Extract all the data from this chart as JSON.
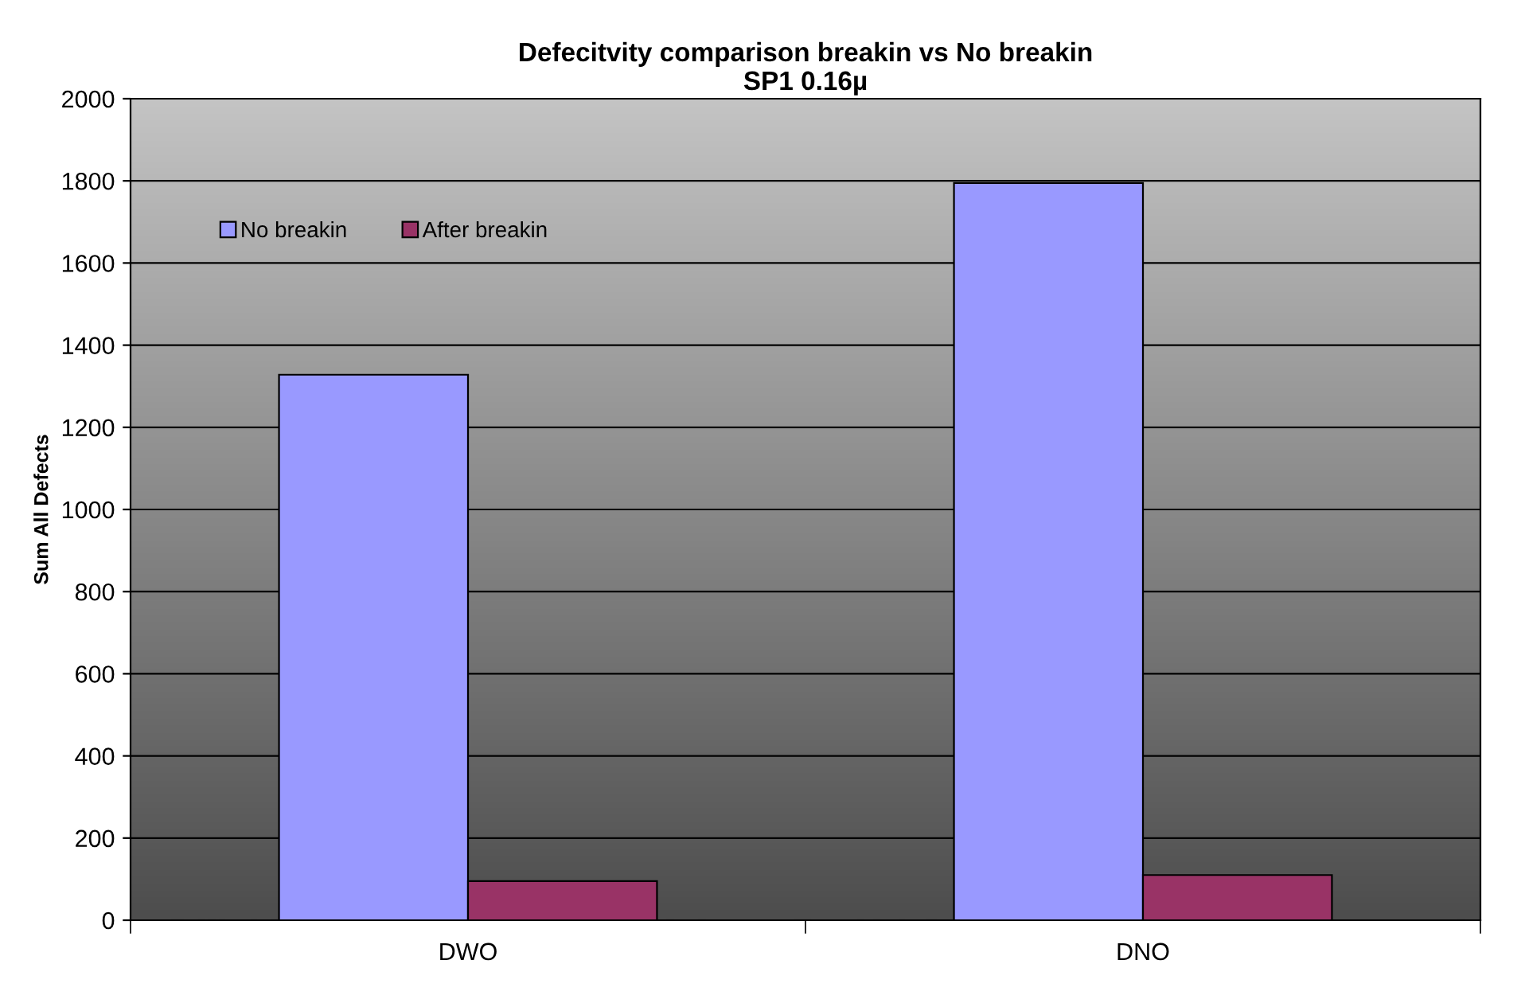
{
  "chart_data": {
    "type": "bar",
    "title": "Defecitvity comparison breakin vs No breakin\nSP1 0.16µ",
    "ylabel": "Sum All Defects",
    "categories": [
      "DWO",
      "DNO"
    ],
    "series": [
      {
        "name": "No breakin",
        "color": "#9999ff",
        "values": [
          1328,
          1795
        ]
      },
      {
        "name": "After breakin",
        "color": "#993366",
        "values": [
          95,
          110
        ]
      }
    ],
    "ylim": [
      0,
      2000
    ],
    "yticks": [
      0,
      200,
      400,
      600,
      800,
      1000,
      1200,
      1400,
      1600,
      1800,
      2000
    ],
    "grid": "y",
    "legend": "top left"
  }
}
